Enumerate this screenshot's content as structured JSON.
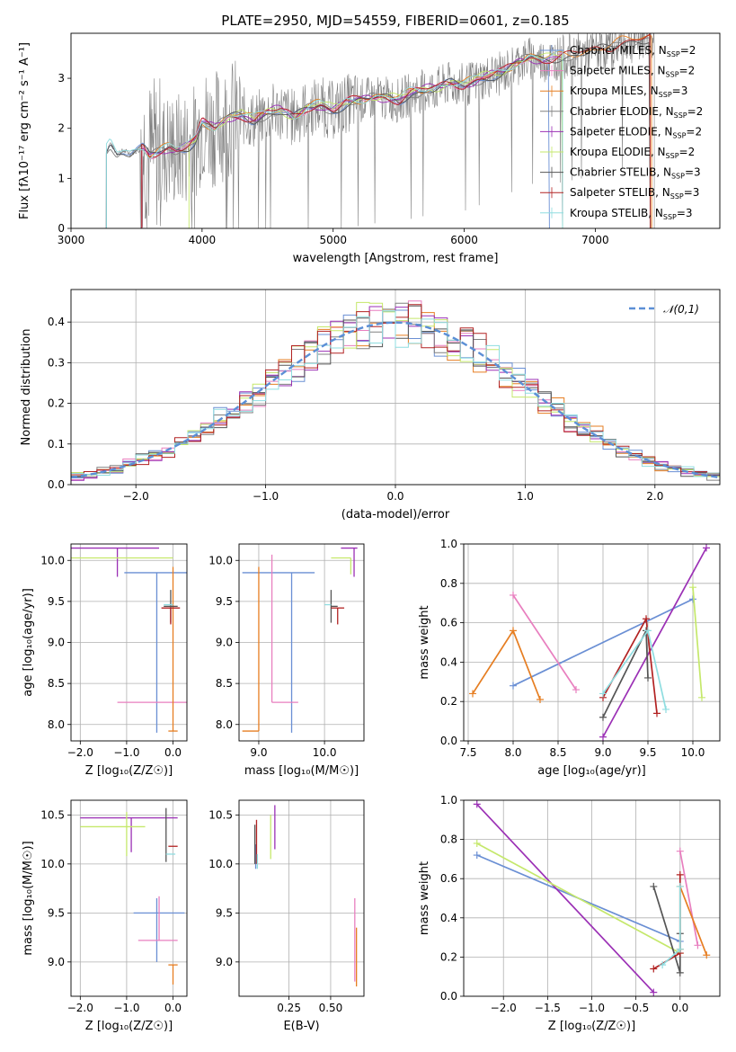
{
  "figure_title": "PLATE=2950, MJD=54559, FIBERID=0601, z=0.185",
  "series_colors": {
    "Chabrier MILES": "#6a8fd4",
    "Salpeter MILES": "#e87fbf",
    "Kroupa MILES": "#e67e22",
    "Chabrier ELODIE": "#808080",
    "Salpeter ELODIE": "#9b30b5",
    "Kroupa ELODIE": "#c5e86b",
    "Chabrier STELIB": "#555555",
    "Salpeter STELIB": "#b22222",
    "Kroupa STELIB": "#8fdde0"
  },
  "chart_data": [
    {
      "type": "line",
      "title": "PLATE=2950, MJD=54559, FIBERID=0601, z=0.185",
      "xlabel": "wavelength [Angstrom, rest frame]",
      "ylabel": "Flux [fλ10⁻¹⁷ erg cm⁻² s⁻¹ A⁻¹]",
      "xlim": [
        3000,
        7950
      ],
      "ylim": [
        0,
        3.9
      ],
      "xticks": [
        3000,
        4000,
        5000,
        6000,
        7000
      ],
      "yticks": [
        0,
        1,
        2,
        3
      ],
      "grid": false,
      "legend_position": "upper right",
      "legend": [
        {
          "label": "Chabrier MILES, N",
          "sub": "SSP",
          "suffix": "=2",
          "color": "#6a8fd4"
        },
        {
          "label": "Salpeter MILES, N",
          "sub": "SSP",
          "suffix": "=2",
          "color": "#e87fbf"
        },
        {
          "label": "Kroupa MILES, N",
          "sub": "SSP",
          "suffix": "=3",
          "color": "#e67e22"
        },
        {
          "label": "Chabrier ELODIE, N",
          "sub": "SSP",
          "suffix": "=2",
          "color": "#808080"
        },
        {
          "label": "Salpeter ELODIE, N",
          "sub": "SSP",
          "suffix": "=2",
          "color": "#9b30b5"
        },
        {
          "label": "Kroupa ELODIE, N",
          "sub": "SSP",
          "suffix": "=2",
          "color": "#c5e86b"
        },
        {
          "label": "Chabrier STELIB, N",
          "sub": "SSP",
          "suffix": "=3",
          "color": "#555555"
        },
        {
          "label": "Salpeter STELIB, N",
          "sub": "SSP",
          "suffix": "=3",
          "color": "#b22222"
        },
        {
          "label": "Kroupa STELIB, N",
          "sub": "SSP",
          "suffix": "=3",
          "color": "#8fdde0"
        }
      ],
      "model_continuum": {
        "x": [
          3270,
          3300,
          3350,
          3400,
          3450,
          3500,
          3550,
          3600,
          3650,
          3700,
          3750,
          3800,
          3850,
          3900,
          3950,
          4000,
          4100,
          4200,
          4300,
          4400,
          4500,
          4600,
          4700,
          4800,
          4900,
          5000,
          5100,
          5200,
          5300,
          5400,
          5500,
          5600,
          5700,
          5800,
          5900,
          6000,
          6100,
          6200,
          6300,
          6400,
          6500,
          6600,
          6700,
          6800,
          6900,
          7000,
          7100,
          7200,
          7300,
          7400
        ],
        "y": [
          1.55,
          1.7,
          1.5,
          1.55,
          1.5,
          1.55,
          1.6,
          1.45,
          1.5,
          1.55,
          1.6,
          1.55,
          1.6,
          1.65,
          1.75,
          2.1,
          2.0,
          2.2,
          2.25,
          2.15,
          2.3,
          2.35,
          2.2,
          2.4,
          2.45,
          2.35,
          2.5,
          2.55,
          2.6,
          2.6,
          2.55,
          2.7,
          2.75,
          2.8,
          2.9,
          2.85,
          2.95,
          3.05,
          3.1,
          3.3,
          3.4,
          3.35,
          3.4,
          3.45,
          3.5,
          3.55,
          3.6,
          3.7,
          3.75,
          3.8
        ]
      },
      "observed_range_angstrom": [
        3270,
        7450
      ]
    },
    {
      "type": "area",
      "xlabel": "(data-model)/error",
      "ylabel": "Normed distribution",
      "xlim": [
        -2.5,
        2.5
      ],
      "ylim": [
        0,
        0.48
      ],
      "xticks": [
        -2,
        -1,
        0,
        1,
        2
      ],
      "yticks": [
        0.0,
        0.1,
        0.2,
        0.3,
        0.4
      ],
      "grid": true,
      "legend_position": "upper right",
      "reference_curve": {
        "label": "𝒩(0,1)",
        "mean": 0,
        "sigma": 1,
        "color": "#5b8fd6"
      },
      "histogram_bins": 50
    },
    {
      "type": "scatter",
      "xlabel": "Z [log₁₀(Z/Z☉)]",
      "ylabel": "age  [log₁₀(age/yr)]",
      "xlim": [
        -2.2,
        0.3
      ],
      "ylim": [
        7.8,
        10.2
      ],
      "xticks": [
        -2,
        -1,
        0
      ],
      "yticks": [
        8.0,
        8.5,
        9.0,
        9.5,
        10.0
      ],
      "grid": true,
      "points": [
        {
          "model": "Chabrier MILES",
          "x": -0.35,
          "y": 9.85,
          "xerr": [
            0.7,
            0.7
          ],
          "yerr": [
            1.95,
            0.0
          ]
        },
        {
          "model": "Salpeter MILES",
          "x": -0.3,
          "y": 8.27,
          "xerr": [
            0.9,
            0.8
          ],
          "yerr": [
            0.0,
            0.0
          ]
        },
        {
          "model": "Kroupa MILES",
          "x": 0.0,
          "y": 7.92,
          "xerr": [
            0.1,
            0.1
          ],
          "yerr": [
            0.0,
            2.0
          ]
        },
        {
          "model": "Salpeter ELODIE",
          "x": -1.2,
          "y": 10.15,
          "xerr": [
            1.0,
            0.9
          ],
          "yerr": [
            0.35,
            0.0
          ]
        },
        {
          "model": "Kroupa ELODIE",
          "x": -1.1,
          "y": 10.03,
          "xerr": [
            1.2,
            1.1
          ],
          "yerr": [
            0.0,
            0.0
          ]
        },
        {
          "model": "Chabrier STELIB",
          "x": -0.05,
          "y": 9.44,
          "xerr": [
            0.15,
            0.15
          ],
          "yerr": [
            0.2,
            0.2
          ]
        },
        {
          "model": "Salpeter STELIB",
          "x": -0.05,
          "y": 9.42,
          "xerr": [
            0.2,
            0.2
          ],
          "yerr": [
            0.2,
            0.0
          ]
        },
        {
          "model": "Kroupa STELIB",
          "x": -0.1,
          "y": 9.46,
          "xerr": [
            0.1,
            0.1
          ],
          "yerr": [
            0.0,
            0.0
          ]
        }
      ]
    },
    {
      "type": "scatter",
      "xlabel": "mass [log₁₀(M/M☉)]",
      "ylabel": "",
      "xlim": [
        8.7,
        10.6
      ],
      "ylim": [
        7.8,
        10.2
      ],
      "xticks": [
        9,
        10
      ],
      "yticks": [
        8.0,
        8.5,
        9.0,
        9.5,
        10.0
      ],
      "grid": true,
      "points": [
        {
          "model": "Chabrier MILES",
          "x": 9.5,
          "y": 9.85,
          "xerr": [
            0.75,
            0.35
          ],
          "yerr": [
            1.95,
            0.0
          ]
        },
        {
          "model": "Salpeter MILES",
          "x": 9.2,
          "y": 8.27,
          "xerr": [
            0.0,
            0.4
          ],
          "yerr": [
            0.0,
            1.8
          ]
        },
        {
          "model": "Kroupa MILES",
          "x": 9.0,
          "y": 7.92,
          "xerr": [
            0.25,
            0.0
          ],
          "yerr": [
            0.0,
            2.0
          ]
        },
        {
          "model": "Salpeter ELODIE",
          "x": 10.45,
          "y": 10.15,
          "xerr": [
            0.2,
            0.05
          ],
          "yerr": [
            0.35,
            0.0
          ]
        },
        {
          "model": "Kroupa ELODIE",
          "x": 10.4,
          "y": 10.03,
          "xerr": [
            0.3,
            0.0
          ],
          "yerr": [
            0.2,
            0.0
          ]
        },
        {
          "model": "Chabrier STELIB",
          "x": 10.1,
          "y": 9.44,
          "xerr": [
            0.0,
            0.1
          ],
          "yerr": [
            0.2,
            0.2
          ]
        },
        {
          "model": "Salpeter STELIB",
          "x": 10.2,
          "y": 9.42,
          "xerr": [
            0.1,
            0.1
          ],
          "yerr": [
            0.2,
            0.0
          ]
        },
        {
          "model": "Kroupa STELIB",
          "x": 10.1,
          "y": 9.46,
          "xerr": [
            0.1,
            0.0
          ],
          "yerr": [
            0.0,
            0.0
          ]
        }
      ]
    },
    {
      "type": "line",
      "xlabel": "age  [log₁₀(age/yr)]",
      "ylabel": "mass weight",
      "xlim": [
        7.45,
        10.3
      ],
      "ylim": [
        0,
        1.0
      ],
      "xticks": [
        7.5,
        8.0,
        8.5,
        9.0,
        9.5,
        10.0
      ],
      "yticks": [
        0.0,
        0.2,
        0.4,
        0.6,
        0.8,
        1.0
      ],
      "grid": true,
      "series": [
        {
          "model": "Chabrier MILES",
          "x": [
            8.0,
            10.0
          ],
          "y": [
            0.28,
            0.72
          ]
        },
        {
          "model": "Salpeter MILES",
          "x": [
            8.0,
            8.7
          ],
          "y": [
            0.74,
            0.26
          ]
        },
        {
          "model": "Kroupa MILES",
          "x": [
            7.55,
            8.0,
            8.3
          ],
          "y": [
            0.24,
            0.56,
            0.21
          ]
        },
        {
          "model": "Salpeter ELODIE",
          "x": [
            9.0,
            10.15
          ],
          "y": [
            0.02,
            0.98
          ]
        },
        {
          "model": "Kroupa ELODIE",
          "x": [
            10.0,
            10.1
          ],
          "y": [
            0.78,
            0.22
          ]
        },
        {
          "model": "Chabrier STELIB",
          "x": [
            9.0,
            9.48,
            9.5
          ],
          "y": [
            0.12,
            0.56,
            0.32
          ]
        },
        {
          "model": "Salpeter STELIB",
          "x": [
            9.0,
            9.48,
            9.6
          ],
          "y": [
            0.22,
            0.62,
            0.14
          ]
        },
        {
          "model": "Kroupa STELIB",
          "x": [
            9.0,
            9.5,
            9.7
          ],
          "y": [
            0.24,
            0.56,
            0.16
          ]
        }
      ]
    },
    {
      "type": "scatter",
      "xlabel": "Z [log₁₀(Z/Z☉)]",
      "ylabel": "mass [log₁₀(M/M☉)]",
      "xlim": [
        -2.2,
        0.3
      ],
      "ylim": [
        8.65,
        10.65
      ],
      "xticks": [
        -2,
        -1,
        0
      ],
      "yticks": [
        9.0,
        9.5,
        10.0,
        10.5
      ],
      "grid": true,
      "points": [
        {
          "model": "Chabrier MILES",
          "x": -0.35,
          "y": 9.5,
          "xerr": [
            0.5,
            0.6
          ],
          "yerr": [
            0.5,
            0.15
          ]
        },
        {
          "model": "Salpeter MILES",
          "x": -0.3,
          "y": 9.22,
          "xerr": [
            0.45,
            0.4
          ],
          "yerr": [
            0.0,
            0.45
          ]
        },
        {
          "model": "Kroupa MILES",
          "x": 0.0,
          "y": 8.97,
          "xerr": [
            0.1,
            0.1
          ],
          "yerr": [
            0.2,
            0.0
          ]
        },
        {
          "model": "Salpeter ELODIE",
          "x": -0.9,
          "y": 10.47,
          "xerr": [
            1.1,
            1.0
          ],
          "yerr": [
            0.35,
            0.0
          ]
        },
        {
          "model": "Kroupa ELODIE",
          "x": -1.0,
          "y": 10.38,
          "xerr": [
            1.0,
            0.4
          ],
          "yerr": [
            0.3,
            0.15
          ]
        },
        {
          "model": "Chabrier STELIB",
          "x": -0.15,
          "y": 10.42,
          "xerr": [
            0.0,
            0.0
          ],
          "yerr": [
            0.4,
            0.15
          ]
        },
        {
          "model": "Salpeter STELIB",
          "x": 0.0,
          "y": 10.18,
          "xerr": [
            0.1,
            0.1
          ],
          "yerr": [
            0.0,
            0.0
          ]
        },
        {
          "model": "Kroupa STELIB",
          "x": -0.05,
          "y": 10.1,
          "xerr": [
            0.1,
            0.1
          ],
          "yerr": [
            0.0,
            0.0
          ]
        }
      ]
    },
    {
      "type": "scatter",
      "xlabel": "E(B-V)",
      "ylabel": "",
      "xlim": [
        -0.05,
        0.7
      ],
      "ylim": [
        8.65,
        10.65
      ],
      "xticks": [
        0.25,
        0.5
      ],
      "xticklabels": [
        "0.25",
        "0.50"
      ],
      "yticks": [
        9.0,
        9.5,
        10.0,
        10.5
      ],
      "grid": true,
      "points": [
        {
          "model": "Chabrier MILES",
          "x": 0.05,
          "y": 10.1,
          "xerr": [
            0,
            0
          ],
          "yerr": [
            0.15,
            0.1
          ]
        },
        {
          "model": "Salpeter MILES",
          "x": 0.645,
          "y": 9.2,
          "xerr": [
            0,
            0
          ],
          "yerr": [
            0.4,
            0.45
          ]
        },
        {
          "model": "Kroupa MILES",
          "x": 0.655,
          "y": 9.05,
          "xerr": [
            0,
            0
          ],
          "yerr": [
            0.3,
            0.3
          ]
        },
        {
          "model": "Salpeter ELODIE",
          "x": 0.165,
          "y": 10.45,
          "xerr": [
            0,
            0
          ],
          "yerr": [
            0.3,
            0.15
          ]
        },
        {
          "model": "Kroupa ELODIE",
          "x": 0.14,
          "y": 10.35,
          "xerr": [
            0,
            0
          ],
          "yerr": [
            0.3,
            0.15
          ]
        },
        {
          "model": "Chabrier STELIB",
          "x": 0.045,
          "y": 10.2,
          "xerr": [
            0,
            0
          ],
          "yerr": [
            0.2,
            0.2
          ]
        },
        {
          "model": "Salpeter STELIB",
          "x": 0.055,
          "y": 10.3,
          "xerr": [
            0,
            0
          ],
          "yerr": [
            0.3,
            0.15
          ]
        },
        {
          "model": "Kroupa STELIB",
          "x": 0.06,
          "y": 10.05,
          "xerr": [
            0,
            0
          ],
          "yerr": [
            0.1,
            0.05
          ]
        }
      ]
    },
    {
      "type": "line",
      "xlabel": "Z [log₁₀(Z/Z☉)]",
      "ylabel": "mass weight",
      "xlim": [
        -2.45,
        0.45
      ],
      "ylim": [
        0,
        1.0
      ],
      "xticks": [
        -2.0,
        -1.5,
        -1.0,
        -0.5,
        0.0
      ],
      "xticklabels": [
        "−2.0",
        "−1.5",
        "−1.0",
        "−0.5",
        "0.0"
      ],
      "yticks": [
        0.0,
        0.2,
        0.4,
        0.6,
        0.8,
        1.0
      ],
      "grid": true,
      "series": [
        {
          "model": "Chabrier MILES",
          "x": [
            -2.3,
            0.0
          ],
          "y": [
            0.72,
            0.28
          ]
        },
        {
          "model": "Salpeter MILES",
          "x": [
            0.0,
            0.2
          ],
          "y": [
            0.74,
            0.26
          ]
        },
        {
          "model": "Kroupa MILES",
          "x": [
            0.0,
            0.0,
            0.3
          ],
          "y": [
            0.24,
            0.56,
            0.21
          ]
        },
        {
          "model": "Salpeter ELODIE",
          "x": [
            -2.3,
            -0.3
          ],
          "y": [
            0.98,
            0.02
          ]
        },
        {
          "model": "Kroupa ELODIE",
          "x": [
            -2.3,
            0.0
          ],
          "y": [
            0.78,
            0.22
          ]
        },
        {
          "model": "Chabrier STELIB",
          "x": [
            -0.3,
            0.0,
            0.0
          ],
          "y": [
            0.56,
            0.12,
            0.32
          ]
        },
        {
          "model": "Salpeter STELIB",
          "x": [
            -0.3,
            0.0,
            0.0
          ],
          "y": [
            0.14,
            0.22,
            0.62
          ]
        },
        {
          "model": "Kroupa STELIB",
          "x": [
            -0.2,
            0.0,
            0.0
          ],
          "y": [
            0.16,
            0.24,
            0.56
          ]
        }
      ]
    }
  ]
}
